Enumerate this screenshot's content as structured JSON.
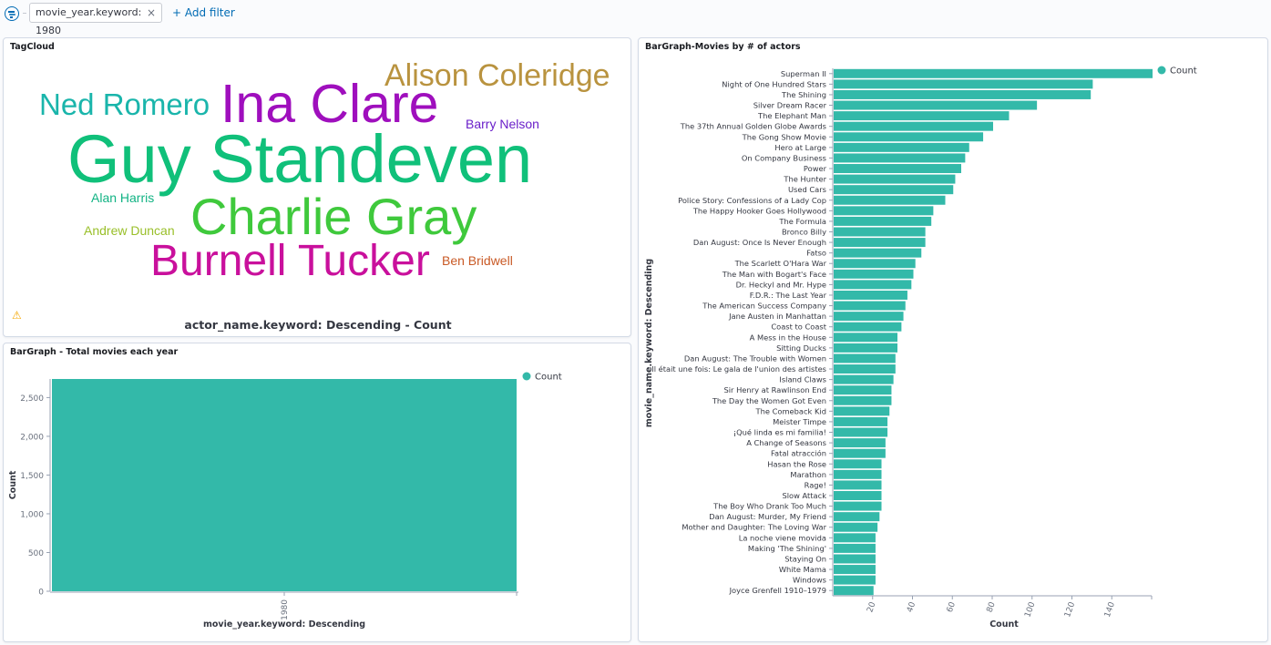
{
  "filter_bar": {
    "filter_pill": "movie_year.keyword: 1980",
    "remove_symbol": "×",
    "add_filter": "+ Add filter"
  },
  "tagcloud": {
    "title": "TagCloud",
    "caption": "actor_name.keyword: Descending - Count",
    "warning_icon": "warning-icon",
    "tags": [
      {
        "text": "Alison Coleridge",
        "color": "#b9933f"
      },
      {
        "text": "Ned Romero",
        "color": "#1ab5ab"
      },
      {
        "text": "Ina Clare",
        "color": "#9f0fbd"
      },
      {
        "text": "Barry Nelson",
        "color": "#6a1fc9"
      },
      {
        "text": "Guy Standeven",
        "color": "#10c07a"
      },
      {
        "text": "Alan Harris",
        "color": "#12b384"
      },
      {
        "text": "Charlie Gray",
        "color": "#3fc93c"
      },
      {
        "text": "Andrew Duncan",
        "color": "#99bf29"
      },
      {
        "text": "Burnell Tucker",
        "color": "#c9109c"
      },
      {
        "text": "Ben Bridwell",
        "color": "#c95a26"
      }
    ]
  },
  "year_chart": {
    "title": "BarGraph - Total movies each year",
    "legend": "Count",
    "color": "#33b9a9"
  },
  "actors_chart": {
    "title": "BarGraph-Movies by # of actors",
    "legend": "Count",
    "color": "#33b9a9"
  },
  "chart_data": [
    {
      "type": "bar",
      "title": "BarGraph - Total movies each year",
      "xlabel": "movie_year.keyword: Descending",
      "ylabel": "Count",
      "categories": [
        "1980"
      ],
      "series": [
        {
          "name": "Count",
          "values": [
            2740
          ]
        }
      ],
      "ylim": [
        0,
        2740
      ],
      "yticks": [
        0,
        500,
        1000,
        1500,
        2000,
        2500
      ],
      "ytick_labels": [
        "0",
        "500",
        "1,000",
        "1,500",
        "2,000",
        "2,500"
      ],
      "legend_position": "top-right",
      "grid": false
    },
    {
      "type": "bar",
      "orientation": "horizontal",
      "title": "BarGraph-Movies by # of actors",
      "xlabel": "Count",
      "ylabel": "movie_name.keyword: Descending",
      "xticks": [
        20,
        40,
        60,
        80,
        100,
        120,
        140
      ],
      "xlim": [
        0,
        160
      ],
      "legend_position": "top-right",
      "grid": false,
      "categories": [
        "Superman II",
        "Night of One Hundred Stars",
        "The Shining",
        "Silver Dream Racer",
        "The Elephant Man",
        "The 37th Annual Golden Globe Awards",
        "The Gong Show Movie",
        "Hero at Large",
        "On Company Business",
        "Power",
        "The Hunter",
        "Used Cars",
        "Police Story: Confessions of a Lady Cop",
        "The Happy Hooker Goes Hollywood",
        "The Formula",
        "Bronco Billy",
        "Dan August: Once Is Never Enough",
        "Fatso",
        "The Scarlett O'Hara War",
        "The Man with Bogart's Face",
        "Dr. Heckyl and Mr. Hype",
        "F.D.R.: The Last Year",
        "The American Success Company",
        "Jane Austen in Manhattan",
        "Coast to Coast",
        "A Mess in the House",
        "Sitting Ducks",
        "Dan August: The Trouble with Women",
        "Il était une fois: Le gala de l'union des artistes",
        "Island Claws",
        "Sir Henry at Rawlinson End",
        "The Day the Women Got Even",
        "The Comeback Kid",
        "Meister Timpe",
        "¡Qué linda es mi familia!",
        "A Change of Seasons",
        "Fatal atracción",
        "Hasan the Rose",
        "Marathon",
        "Rage!",
        "Slow Attack",
        "The Boy Who Drank Too Much",
        "Dan August: Murder, My Friend",
        "Mother and Daughter: The Loving War",
        "La noche viene movida",
        "Making 'The Shining'",
        "Staying On",
        "White Mama",
        "Windows",
        "Joyce Grenfell 1910–1979"
      ],
      "series": [
        {
          "name": "Count",
          "values": [
            160,
            130,
            129,
            102,
            88,
            80,
            75,
            68,
            66,
            64,
            61,
            60,
            56,
            50,
            49,
            46,
            46,
            44,
            41,
            40,
            39,
            37,
            36,
            35,
            34,
            32,
            32,
            31,
            31,
            30,
            29,
            29,
            28,
            27,
            27,
            26,
            26,
            24,
            24,
            24,
            24,
            24,
            23,
            22,
            21,
            21,
            21,
            21,
            21,
            20
          ]
        }
      ]
    }
  ]
}
